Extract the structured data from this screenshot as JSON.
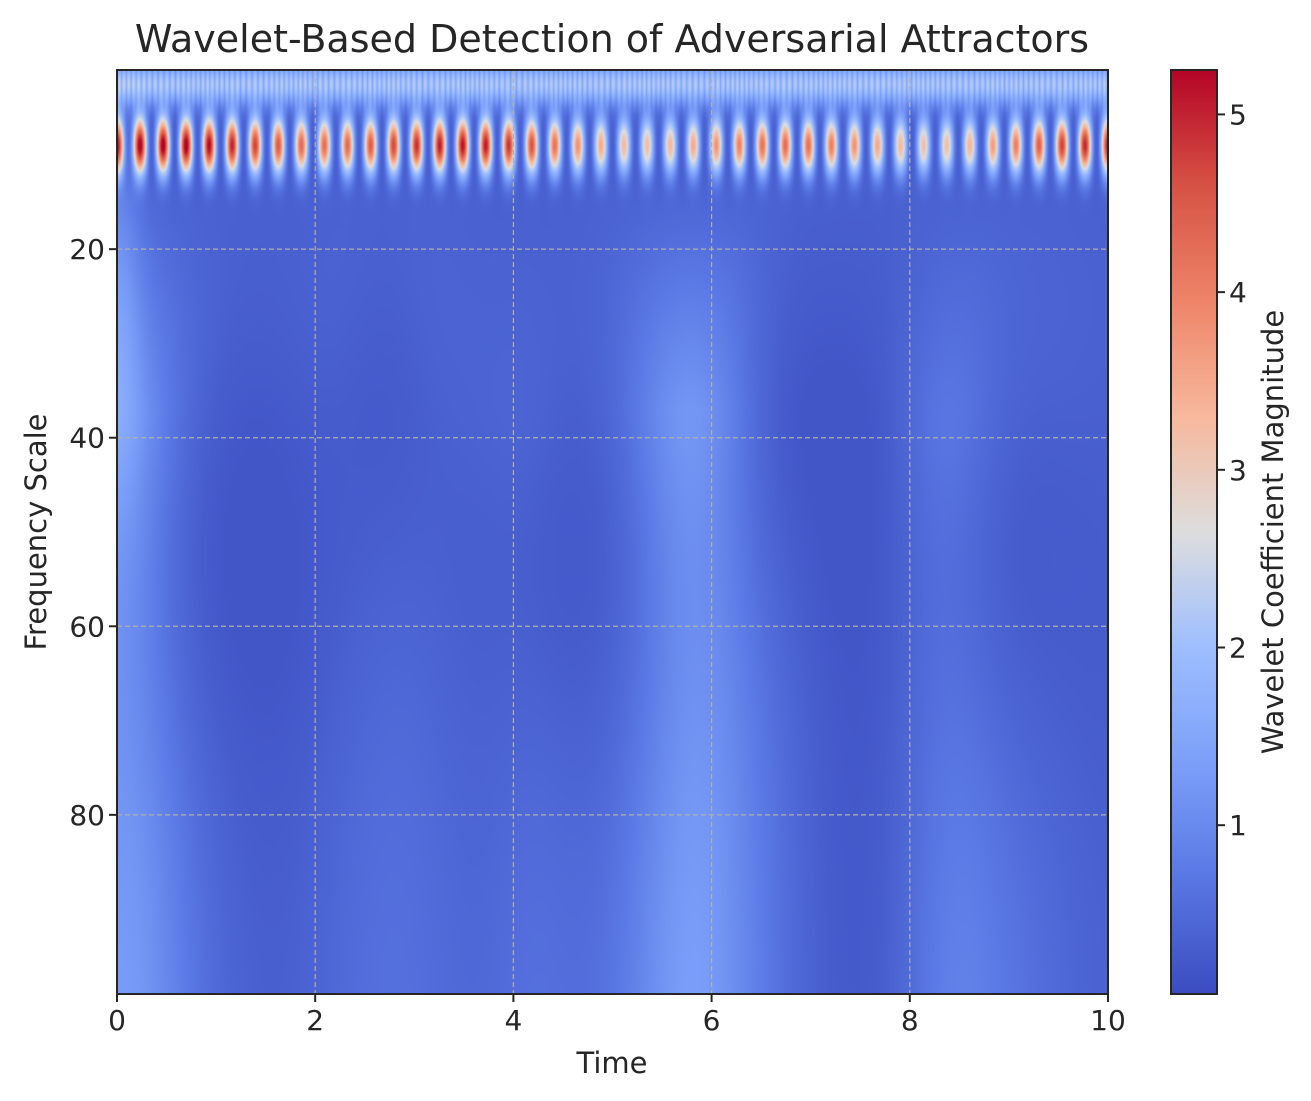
{
  "chart_data": {
    "type": "heatmap",
    "title": "Wavelet-Based Detection of Adversarial Attractors",
    "xlabel": "Time",
    "ylabel": "Frequency Scale",
    "xlim": [
      0,
      10
    ],
    "ylim": [
      1,
      99
    ],
    "y_inverted": true,
    "x_ticks": [
      0,
      2,
      4,
      6,
      8,
      10
    ],
    "y_ticks": [
      20,
      40,
      60,
      80
    ],
    "grid": true,
    "colormap": "coolwarm",
    "colorbar": {
      "label": "Wavelet Coefficient Magnitude",
      "min": 0.05,
      "max": 5.25,
      "ticks": [
        1,
        2,
        3,
        4,
        5
      ]
    },
    "field": {
      "description_free": true,
      "fine_ripple_scale_band": [
        1,
        5
      ],
      "strong_oscillation_scale_center": 9,
      "strong_oscillation_count": 43,
      "strong_oscillation_peak": 5.2,
      "dark_arc_minima_times": [
        1.1,
        2.7,
        4.6,
        6.9,
        9.1
      ],
      "bright_low_scale_times": [
        0.1,
        4.2,
        5.8,
        8.4
      ],
      "low_scale_floor": 0.2
    },
    "colors": {
      "axis": "#262626",
      "grid": "#b0b0b0",
      "cmap_low": "#3b4cc0",
      "cmap_mid": "#dddddd",
      "cmap_high": "#b40426"
    }
  }
}
